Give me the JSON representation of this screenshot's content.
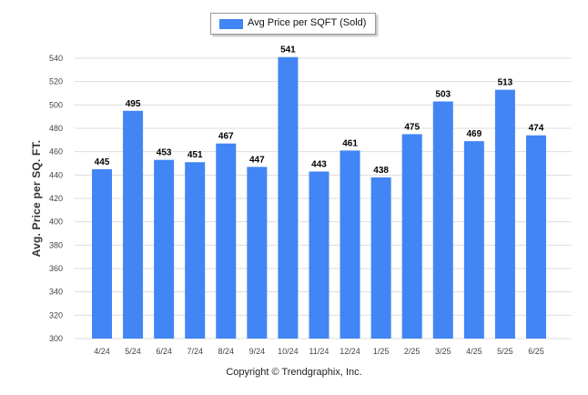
{
  "colors": {
    "bar": "#4285f4",
    "grid": "#dddddd",
    "axis_text": "#444444"
  },
  "legend": {
    "label": "Avg Price per SQFT (Sold)"
  },
  "footer": {
    "copyright": "Copyright © Trendgraphix, Inc."
  },
  "chart_data": {
    "type": "bar",
    "categories": [
      "4/24",
      "5/24",
      "6/24",
      "7/24",
      "8/24",
      "9/24",
      "10/24",
      "11/24",
      "12/24",
      "1/25",
      "2/25",
      "3/25",
      "4/25",
      "5/25",
      "6/25"
    ],
    "series": [
      {
        "name": "Avg Price per SQFT (Sold)",
        "values": [
          445,
          495,
          453,
          451,
          467,
          447,
          541,
          443,
          461,
          438,
          475,
          503,
          469,
          513,
          474
        ]
      }
    ],
    "ylabel": "Avg. Price per SQ. FT.",
    "ylim": [
      300,
      540
    ],
    "yticks": [
      300,
      320,
      340,
      360,
      380,
      400,
      420,
      440,
      460,
      480,
      500,
      520,
      540
    ],
    "grid": true,
    "legend_position": "top-center",
    "data_labels": true
  }
}
